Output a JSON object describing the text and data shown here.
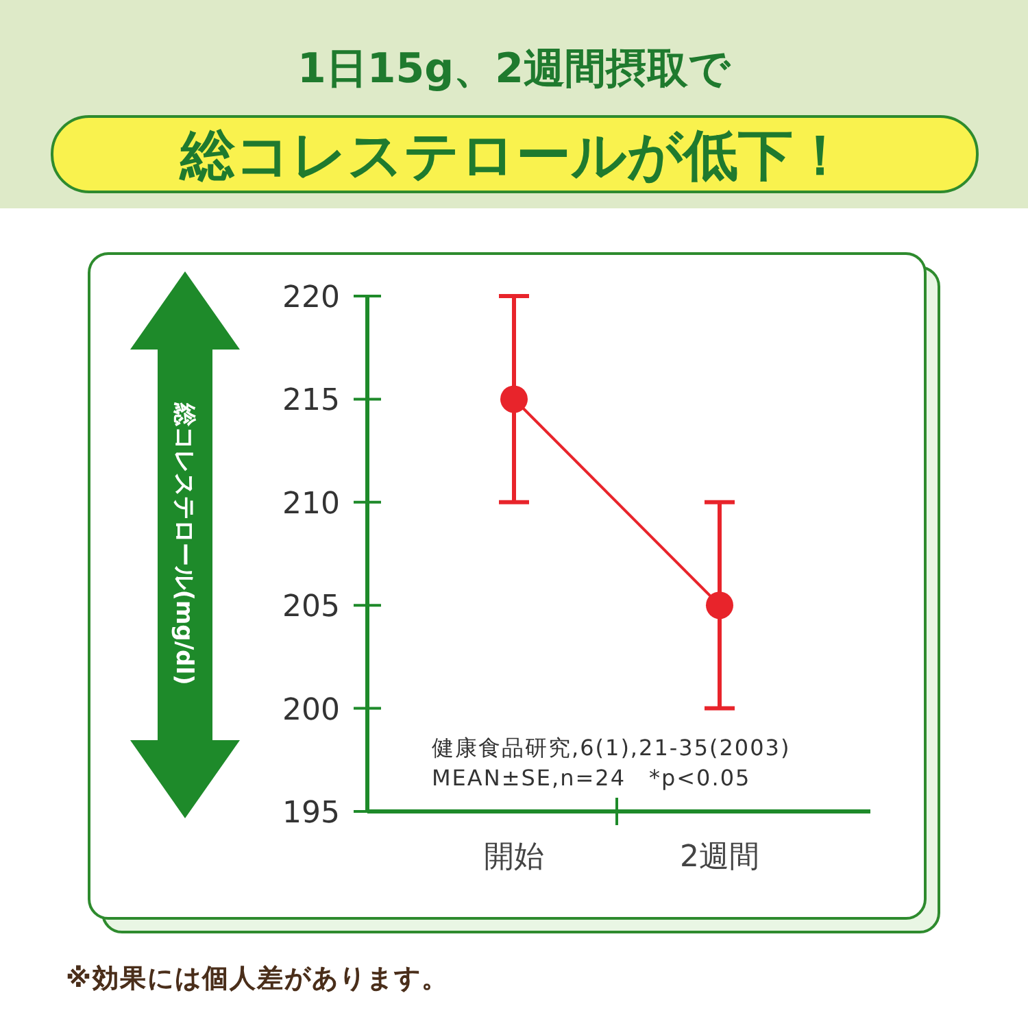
{
  "chart_data": {
    "type": "line",
    "title": "1日15g、2週間摂取で",
    "subtitle": "総コレステロールが低下！",
    "ylabel": "総コレステロール(mg/dl)",
    "categories": [
      "開始",
      "2週間"
    ],
    "series": [
      {
        "color": "#e8242b",
        "values": [
          215,
          205
        ],
        "errors": [
          5,
          5
        ]
      }
    ],
    "ylim": [
      195,
      220
    ],
    "yticks": [
      195,
      200,
      205,
      210,
      215,
      220
    ],
    "marker": "circle",
    "grid": false,
    "annotations": [
      "健康食品研究,6(1),21-35(2003)",
      "MEAN±SE,n=24　*p<0.05",
      "※効果には個人差があります。"
    ]
  }
}
